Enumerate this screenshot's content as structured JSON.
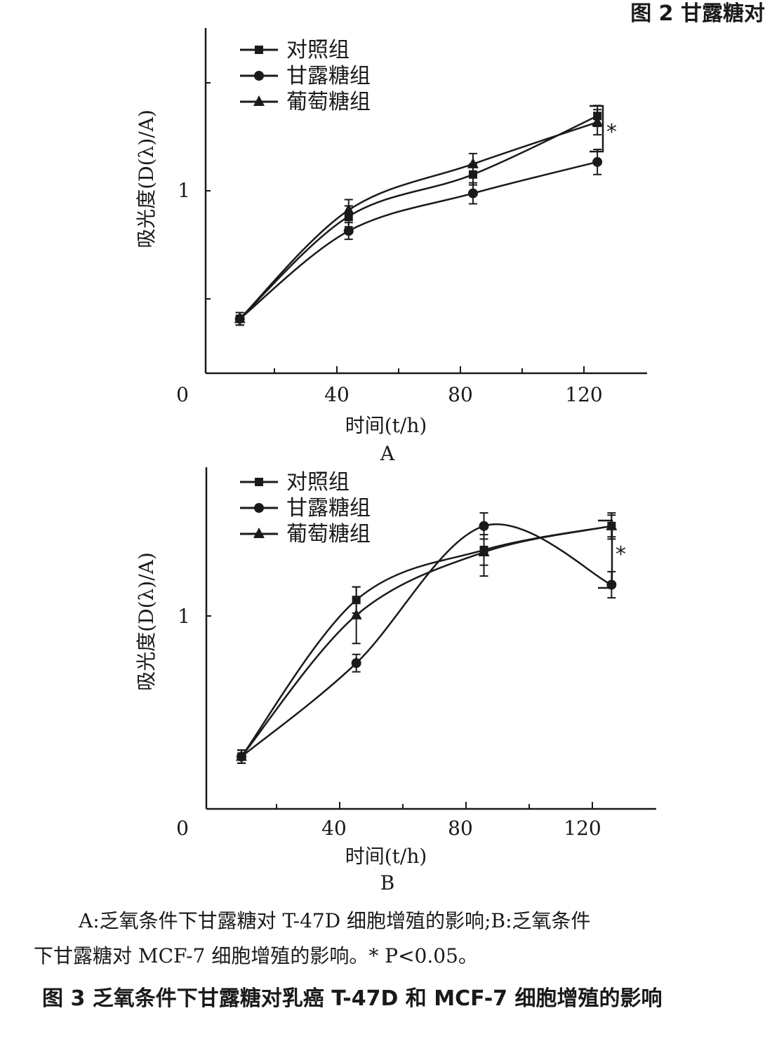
{
  "header_fragment": "图 2   甘露糖对",
  "chart_data": [
    {
      "type": "line",
      "panel_label": "A",
      "xlabel": "时间(t/h)",
      "ylabel": "吸光度(D(λ)/A)",
      "x_ticks": [
        "0",
        "40",
        "80",
        "120"
      ],
      "y_ticks": [
        "1"
      ],
      "xlim": [
        -6,
        136
      ],
      "ylim": [
        0.17,
        1.82
      ],
      "x": [
        5,
        40,
        80,
        120
      ],
      "series": [
        {
          "name": "对照组",
          "marker": "square",
          "values": [
            0.43,
            0.92,
            1.12,
            1.4
          ],
          "errors": [
            0.03,
            0.05,
            0.05,
            0.05
          ]
        },
        {
          "name": "甘露糖组",
          "marker": "circle",
          "values": [
            0.43,
            0.85,
            1.03,
            1.18
          ],
          "errors": [
            0.03,
            0.04,
            0.05,
            0.06
          ]
        },
        {
          "name": "葡萄糖组",
          "marker": "triangle",
          "values": [
            0.43,
            0.95,
            1.17,
            1.37
          ],
          "errors": [
            0.03,
            0.05,
            0.05,
            0.06
          ]
        }
      ],
      "significance": "*",
      "color": "#1a1a1a"
    },
    {
      "type": "line",
      "panel_label": "B",
      "xlabel": "时间(t/h)",
      "ylabel": "吸光度(D(λ)/A)",
      "x_ticks": [
        "0",
        "40",
        "80",
        "120"
      ],
      "y_ticks": [
        "1"
      ],
      "xlim": [
        -7,
        134
      ],
      "ylim": [
        0.14,
        1.71
      ],
      "x": [
        4,
        40,
        80,
        120
      ],
      "series": [
        {
          "name": "对照组",
          "marker": "square",
          "values": [
            0.38,
            1.1,
            1.33,
            1.44
          ],
          "errors": [
            0.03,
            0.06,
            0.07,
            0.05
          ]
        },
        {
          "name": "甘露糖组",
          "marker": "circle",
          "values": [
            0.38,
            0.81,
            1.44,
            1.17
          ],
          "errors": [
            0.03,
            0.04,
            0.06,
            0.06
          ]
        },
        {
          "name": "葡萄糖组",
          "marker": "triangle",
          "values": [
            0.38,
            1.03,
            1.32,
            1.44
          ],
          "errors": [
            0.03,
            0.13,
            0.11,
            0.06
          ]
        }
      ],
      "significance": "*",
      "color": "#1a1a1a"
    }
  ],
  "caption": {
    "line1": "A:乏氧条件下甘露糖对 T-47D 细胞增殖的影响;B:乏氧条件",
    "line2": "下甘露糖对 MCF-7 细胞增殖的影响。* P<0.05。"
  },
  "figure_title": "图 3   乏氧条件下甘露糖对乳癌 T-47D 和 MCF-7 细胞增殖的影响"
}
